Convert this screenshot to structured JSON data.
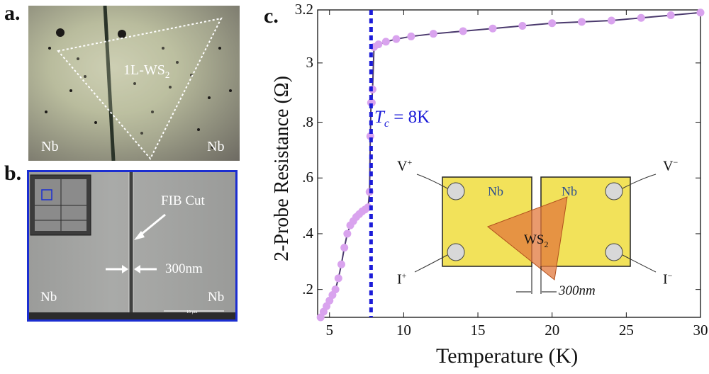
{
  "panels": {
    "a": {
      "label": "a.",
      "flake_label": "1L-WS",
      "flake_sub": "2",
      "left_electrode": "Nb",
      "right_electrode": "Nb"
    },
    "b": {
      "label": "b.",
      "fib_label": "FIB Cut",
      "gap_label": "300nm",
      "left_electrode": "Nb",
      "right_electrode": "Nb",
      "scalebar_label": "10 μm"
    },
    "c": {
      "label": "c."
    }
  },
  "colors": {
    "data": "#d9a3ee",
    "data_line": "#4b3a6e",
    "tc_line": "#1b1bd8",
    "tc_text": "#1b1bd8",
    "inset_border": "#1b2ed1"
  },
  "inset": {
    "v_plus": "V",
    "v_plus_sup": "+",
    "v_minus": "V",
    "v_minus_sup": "−",
    "i_plus": "I",
    "i_plus_sup": "+",
    "i_minus": "I",
    "i_minus_sup": "−",
    "left_pad": "Nb",
    "right_pad": "Nb",
    "flake": "WS",
    "flake_sub": "2",
    "gap": "300nm"
  },
  "chart_data": {
    "type": "line",
    "title": "",
    "xlabel": "Temperature (K)",
    "ylabel": "2-Probe Resistance (Ω)",
    "xlim": [
      4.2,
      30
    ],
    "ylim": [
      0.1,
      3.2
    ],
    "x_ticks": [
      5,
      10,
      15,
      20,
      25,
      30
    ],
    "y_ticks": [
      0.2,
      0.4,
      0.6,
      0.8,
      3.0,
      3.2
    ],
    "y_tick_labels": [
      ".2",
      ".4",
      ".6",
      ".8",
      "3",
      "3.2"
    ],
    "annotation": "T_c = 8K",
    "tc_label_main": "T",
    "tc_label_sub": "c",
    "tc_label_rest": " = 8K",
    "tc": 7.8,
    "series": [
      {
        "name": "2-probe resistance",
        "x": [
          4.4,
          4.6,
          4.8,
          5.0,
          5.2,
          5.4,
          5.6,
          5.8,
          6.0,
          6.2,
          6.4,
          6.6,
          6.8,
          7.0,
          7.2,
          7.4,
          7.6,
          7.7,
          7.75,
          7.8,
          7.85,
          7.9,
          8.0,
          8.3,
          8.8,
          9.5,
          10.5,
          12,
          14,
          16,
          18,
          20,
          22,
          24,
          26,
          28,
          30
        ],
        "y": [
          0.1,
          0.12,
          0.14,
          0.16,
          0.18,
          0.2,
          0.24,
          0.29,
          0.35,
          0.4,
          0.43,
          0.445,
          0.46,
          0.47,
          0.48,
          0.487,
          0.495,
          0.55,
          0.75,
          1.1,
          2.0,
          2.9,
          3.06,
          3.07,
          3.08,
          3.09,
          3.1,
          3.11,
          3.12,
          3.13,
          3.14,
          3.15,
          3.155,
          3.16,
          3.17,
          3.18,
          3.19
        ]
      }
    ]
  }
}
